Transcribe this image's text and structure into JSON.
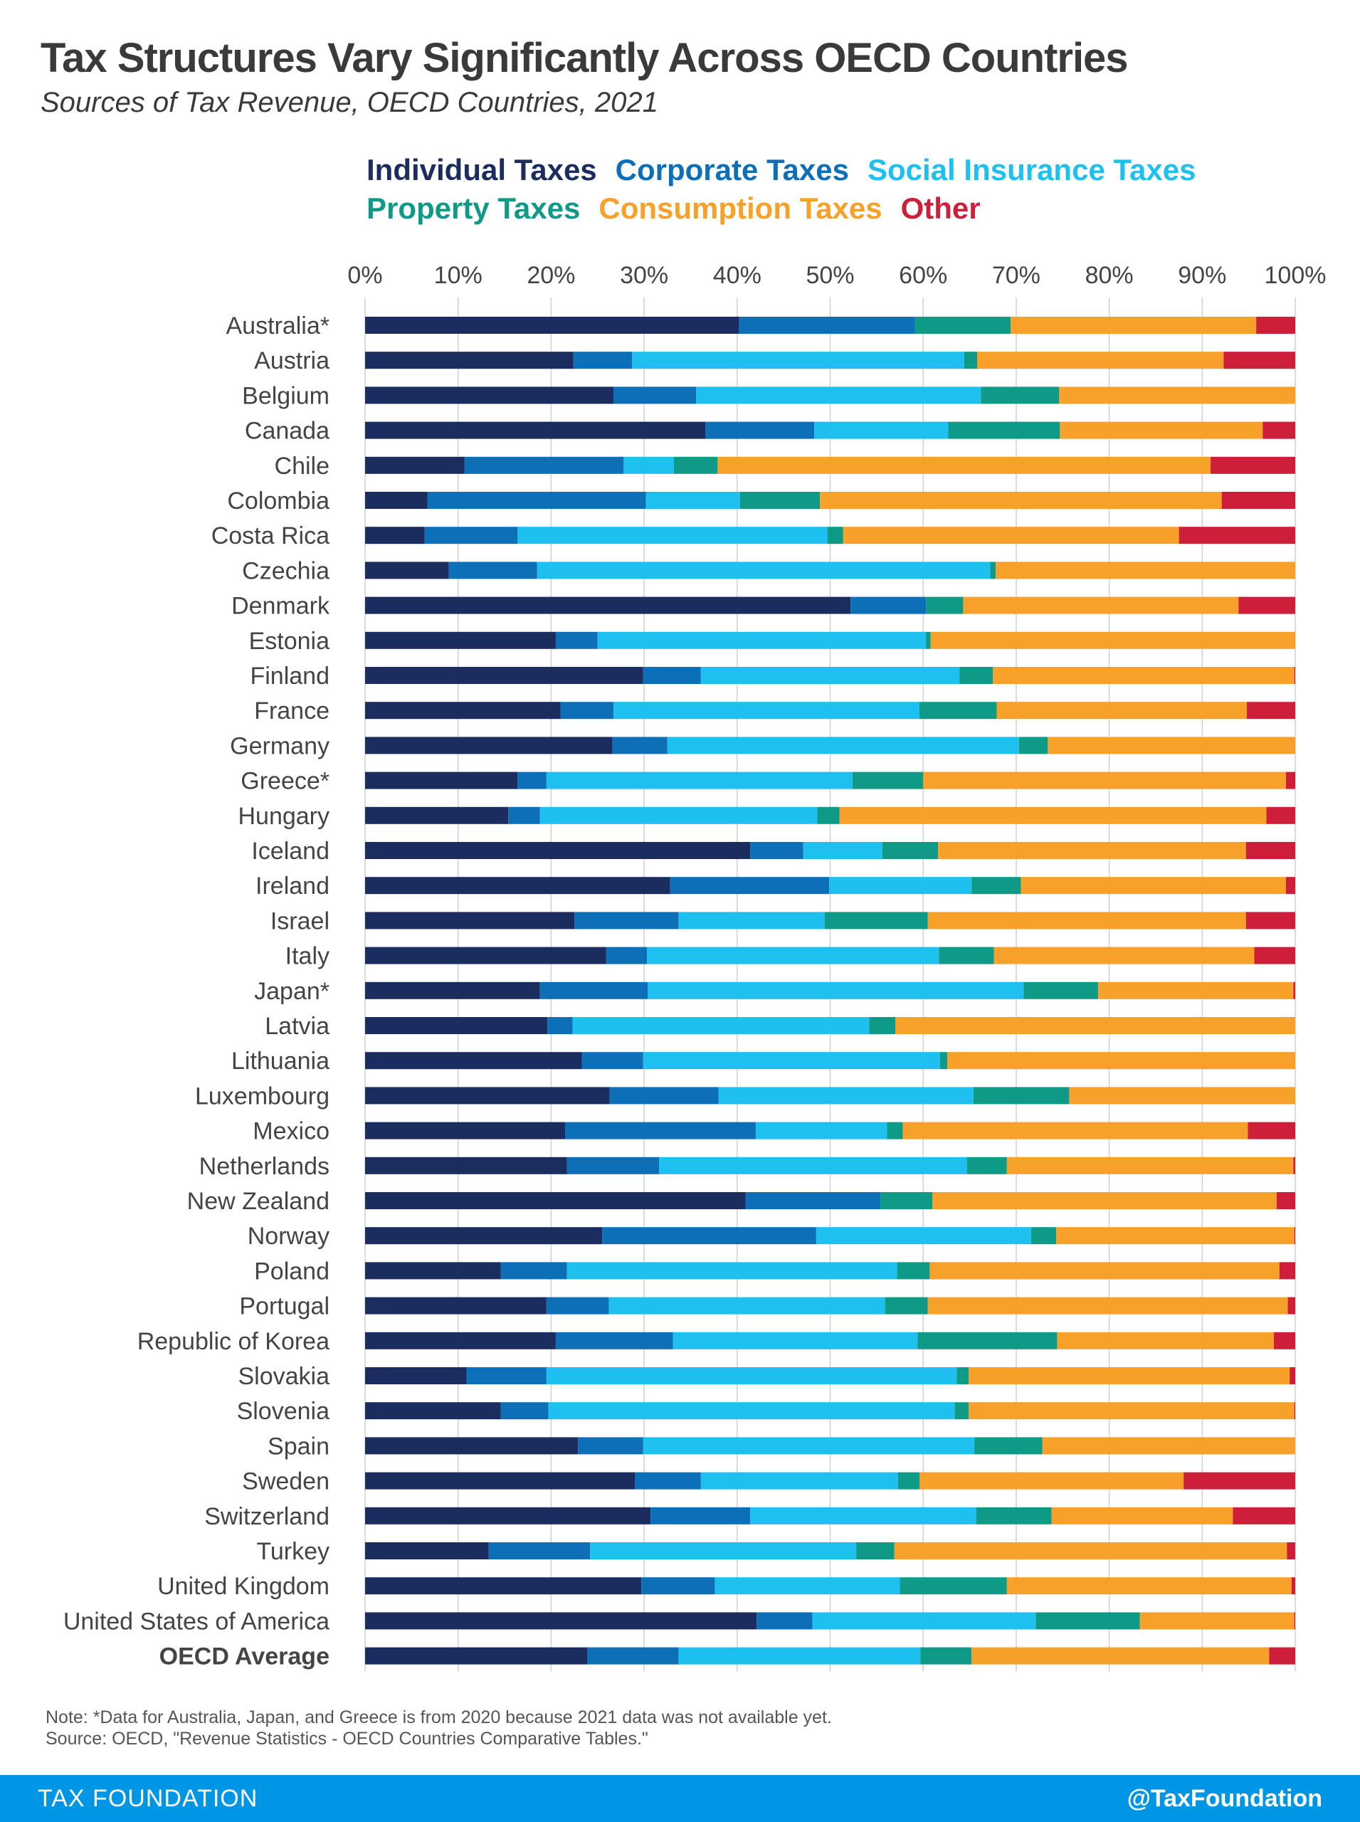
{
  "title": "Tax Structures Vary Significantly Across OECD Countries",
  "subtitle": "Sources of Tax Revenue, OECD Countries, 2021",
  "notes": {
    "note": "Note: *Data for Australia, Japan, and Greece is from 2020 because 2021 data was not available yet.",
    "source": "Source: OECD, \"Revenue Statistics - OECD Countries Comparative Tables.\""
  },
  "footer": {
    "brand": "TAX FOUNDATION",
    "handle": "@TaxFoundation"
  },
  "colors": {
    "individual": "#1b2d5e",
    "corporate": "#0c6fb7",
    "social": "#1ec0ef",
    "property": "#0e9a87",
    "consumption": "#f7a02a",
    "other": "#cd1f39",
    "gridline": "#d0d0d0",
    "text": "#444444",
    "footer_bg": "#0096e6"
  },
  "chart_data": {
    "type": "bar",
    "orientation": "horizontal",
    "stacked": true,
    "percent_stacked": true,
    "xlim": [
      0,
      100
    ],
    "xticks": [
      0,
      10,
      20,
      30,
      40,
      50,
      60,
      70,
      80,
      90,
      100
    ],
    "xtick_labels": [
      "0%",
      "10%",
      "20%",
      "30%",
      "40%",
      "50%",
      "60%",
      "70%",
      "80%",
      "90%",
      "100%"
    ],
    "grid": true,
    "legend_position": "top",
    "categories": [
      "Australia*",
      "Austria",
      "Belgium",
      "Canada",
      "Chile",
      "Colombia",
      "Costa Rica",
      "Czechia",
      "Denmark",
      "Estonia",
      "Finland",
      "France",
      "Germany",
      "Greece*",
      "Hungary",
      "Iceland",
      "Ireland",
      "Israel",
      "Italy",
      "Japan*",
      "Latvia",
      "Lithuania",
      "Luxembourg",
      "Mexico",
      "Netherlands",
      "New Zealand",
      "Norway",
      "Poland",
      "Portugal",
      "Republic of Korea",
      "Slovakia",
      "Slovenia",
      "Spain",
      "Sweden",
      "Switzerland",
      "Turkey",
      "United Kingdom",
      "United States of America",
      "OECD Average"
    ],
    "bold_categories": [
      "OECD Average"
    ],
    "series": [
      {
        "name": "Individual Taxes",
        "key": "individual",
        "values": [
          40.2,
          22.4,
          26.7,
          36.6,
          10.7,
          6.7,
          6.4,
          9.0,
          52.2,
          20.5,
          29.9,
          21.0,
          26.6,
          16.4,
          15.4,
          41.4,
          32.8,
          22.5,
          25.9,
          18.8,
          19.6,
          23.3,
          26.3,
          21.5,
          21.7,
          40.9,
          25.5,
          14.6,
          19.5,
          20.5,
          10.9,
          14.6,
          22.9,
          29.0,
          30.7,
          13.3,
          29.7,
          42.1,
          23.9
        ]
      },
      {
        "name": "Corporate Taxes",
        "key": "corporate",
        "values": [
          18.9,
          6.3,
          8.9,
          11.7,
          17.1,
          23.5,
          10.0,
          9.5,
          8.1,
          4.5,
          6.2,
          5.7,
          5.9,
          3.1,
          3.4,
          5.7,
          17.1,
          11.2,
          4.4,
          11.6,
          2.7,
          6.6,
          11.7,
          20.5,
          9.9,
          14.5,
          23.0,
          7.1,
          6.7,
          12.6,
          8.6,
          5.1,
          7.0,
          7.1,
          10.7,
          10.9,
          7.9,
          6.0,
          9.8
        ]
      },
      {
        "name": "Social Insurance Taxes",
        "key": "social",
        "values": [
          0.0,
          35.7,
          30.6,
          14.4,
          5.4,
          10.1,
          33.3,
          48.7,
          0.0,
          35.3,
          27.8,
          32.9,
          37.8,
          32.9,
          29.8,
          8.5,
          15.3,
          15.7,
          31.4,
          40.4,
          31.9,
          31.9,
          27.4,
          14.1,
          33.1,
          0.0,
          23.1,
          35.5,
          29.7,
          26.3,
          44.1,
          43.7,
          35.6,
          21.2,
          24.3,
          28.6,
          19.9,
          24.0,
          26.0
        ]
      },
      {
        "name": "Property Taxes",
        "key": "property",
        "values": [
          10.3,
          1.4,
          8.4,
          12.0,
          4.7,
          8.6,
          1.7,
          0.6,
          4.0,
          0.5,
          3.6,
          8.3,
          3.1,
          7.6,
          2.4,
          6.0,
          5.3,
          11.1,
          5.9,
          8.0,
          2.8,
          0.8,
          10.3,
          1.7,
          4.3,
          5.6,
          2.7,
          3.5,
          4.6,
          15.0,
          1.3,
          1.5,
          7.3,
          2.3,
          8.1,
          4.1,
          11.5,
          11.2,
          5.5
        ]
      },
      {
        "name": "Consumption Taxes",
        "key": "consumption",
        "values": [
          26.4,
          26.5,
          25.4,
          21.8,
          53.0,
          43.2,
          36.1,
          32.2,
          29.6,
          39.2,
          32.4,
          26.9,
          26.6,
          39.0,
          45.9,
          33.1,
          28.5,
          34.2,
          28.0,
          21.0,
          43.0,
          37.4,
          24.3,
          37.1,
          30.8,
          37.0,
          25.6,
          37.6,
          38.7,
          23.3,
          34.5,
          35.0,
          27.2,
          28.4,
          19.5,
          42.2,
          30.6,
          16.6,
          32.0
        ]
      },
      {
        "name": "Other",
        "key": "other",
        "values": [
          4.2,
          7.7,
          0.0,
          3.5,
          9.1,
          7.9,
          12.5,
          0.0,
          6.1,
          0.0,
          0.1,
          5.2,
          0.0,
          1.0,
          3.1,
          5.3,
          1.0,
          5.3,
          4.4,
          0.2,
          0.0,
          0.0,
          0.0,
          5.1,
          0.2,
          2.0,
          0.1,
          1.7,
          0.8,
          2.3,
          0.6,
          0.1,
          0.0,
          12.0,
          6.7,
          0.9,
          0.4,
          0.1,
          2.8
        ]
      }
    ]
  }
}
